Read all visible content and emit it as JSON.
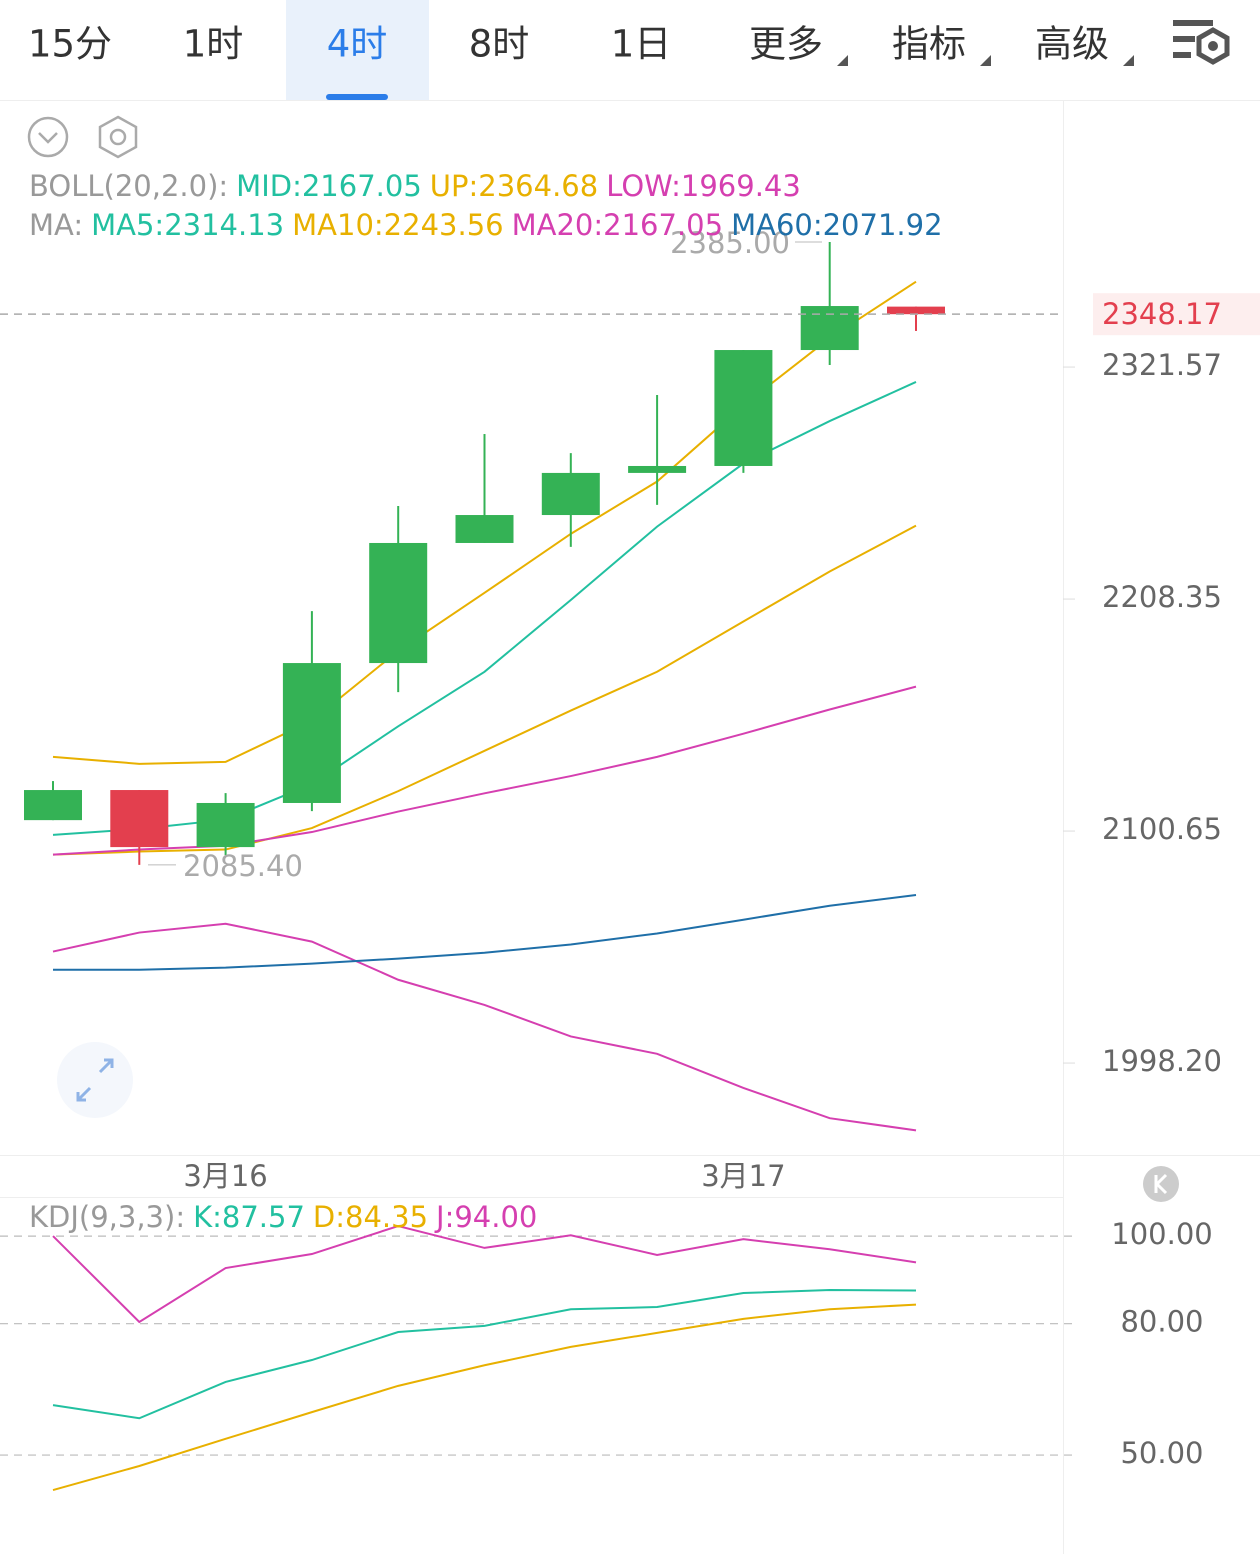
{
  "tabs": [
    "15分",
    "1时",
    "4时",
    "8时",
    "1日",
    "更多",
    "指标",
    "高级"
  ],
  "selected_tab": 2,
  "chart_data": [
    {
      "type": "candlestick",
      "legend_rows": [
        {
          "prefix": "BOLL(20,2.0):",
          "items": [
            {
              "text": "MID:2167.05",
              "color": "#22c0a0"
            },
            {
              "text": "UP:2364.68",
              "color": "#e8b000"
            },
            {
              "text": "LOW:1969.43",
              "color": "#d53fb0"
            }
          ]
        },
        {
          "prefix": "MA:",
          "items": [
            {
              "text": "MA5:2314.13",
              "color": "#22c0a0"
            },
            {
              "text": "MA10:2243.56",
              "color": "#e8b000"
            },
            {
              "text": "MA20:2167.05",
              "color": "#d53fb0"
            },
            {
              "text": "MA60:2071.92",
              "color": "#1f6fa8"
            }
          ]
        }
      ],
      "categories": [
        null,
        null,
        "3月16",
        null,
        null,
        null,
        null,
        null,
        "3月17",
        null,
        null
      ],
      "candles": [
        {
          "open": 2105.6,
          "high": 2123.4,
          "low": 2105.6,
          "close": 2119.3
        },
        {
          "open": 2119.3,
          "high": 2119.3,
          "low": 2085.4,
          "close": 2093.4
        },
        {
          "open": 2093.4,
          "high": 2117.9,
          "low": 2089.8,
          "close": 2113.4
        },
        {
          "open": 2113.4,
          "high": 2202.6,
          "low": 2109.7,
          "close": 2178.1
        },
        {
          "open": 2178.1,
          "high": 2253.1,
          "low": 2164.5,
          "close": 2235.2
        },
        {
          "open": 2235.2,
          "high": 2288.3,
          "low": 2235.2,
          "close": 2248.7
        },
        {
          "open": 2248.7,
          "high": 2278.9,
          "low": 2233.3,
          "close": 2269.2
        },
        {
          "open": 2269.2,
          "high": 2307.6,
          "low": 2253.6,
          "close": 2272.6
        },
        {
          "open": 2272.6,
          "high": 2330.1,
          "low": 2269.2,
          "close": 2330.1
        },
        {
          "open": 2330.1,
          "high": 2385.0,
          "low": 2322.6,
          "close": 2352.3
        },
        {
          "open": 2352.0,
          "high": 2352.0,
          "low": 2339.7,
          "close": 2348.17
        }
      ],
      "up_color": "#34b255",
      "down_color": "#e33f4e",
      "series": [
        {
          "color": "#e8b000",
          "values": [
            2134.5,
            2131.3,
            2132.2,
            2151.2,
            2183.8,
            2211.3,
            2239.6,
            2265.0,
            2302.5,
            2336.1,
            2364.68
          ]
        },
        {
          "color": "#e8b000",
          "values": [
            2090.0,
            2091.4,
            2092.3,
            2102.0,
            2118.8,
            2137.3,
            2155.9,
            2174.0,
            2197.7,
            2221.5,
            2243.56
          ]
        },
        {
          "color": "#d53fb0",
          "values": [
            2090.0,
            2092.3,
            2094.0,
            2100.2,
            2109.5,
            2117.8,
            2125.7,
            2134.5,
            2145.2,
            2156.4,
            2167.05
          ]
        },
        {
          "color": "#d53fb0",
          "values": [
            2046.8,
            2055.2,
            2059.1,
            2051.2,
            2034.4,
            2023.4,
            2009.7,
            2002.2,
            1987.5,
            1974.6,
            1969.43
          ]
        },
        {
          "color": "#1f6fa8",
          "values": [
            2038.8,
            2038.8,
            2039.7,
            2041.5,
            2043.7,
            2046.3,
            2049.9,
            2054.8,
            2060.9,
            2067.1,
            2071.92
          ]
        },
        {
          "color": "#22c0a0",
          "values": [
            2098.9,
            2101.6,
            2105.8,
            2122.0,
            2148.6,
            2174.0,
            2207.9,
            2243.1,
            2273.8,
            2294.7,
            2314.13
          ]
        }
      ],
      "log_scale": true,
      "ylim": [
        1959.0,
        2459.1
      ],
      "yticks": [
        2321.57,
        2208.35,
        2100.65,
        {
          "value": 1998.2,
          "label": "1998.20"
        }
      ],
      "current_price": 2348.17,
      "high_label": {
        "value": 2385.0,
        "label": "2385.00"
      },
      "low_label": {
        "value": 2085.4,
        "label": "2085.40"
      }
    },
    {
      "type": "line",
      "legend_rows": [
        {
          "prefix": "KDJ(9,3,3):",
          "items": [
            {
              "text": "K:87.57",
              "color": "#22c0a0"
            },
            {
              "text": "D:84.35",
              "color": "#e8b000"
            },
            {
              "text": "J:94.00",
              "color": "#d53fb0"
            }
          ]
        }
      ],
      "series": [
        {
          "color": "#d53fb0",
          "values": [
            100.0,
            80.4,
            92.7,
            95.9,
            102.3,
            97.3,
            100.2,
            95.7,
            99.3,
            97.0,
            94.0
          ]
        },
        {
          "color": "#22c0a0",
          "values": [
            61.4,
            58.4,
            66.7,
            71.7,
            78.1,
            79.5,
            83.3,
            83.8,
            87.0,
            87.7,
            87.57
          ]
        },
        {
          "color": "#e8b000",
          "values": [
            42.0,
            47.5,
            53.7,
            59.8,
            65.8,
            70.5,
            74.7,
            77.9,
            81.1,
            83.3,
            84.35
          ]
        }
      ],
      "ylim": [
        27.4,
        108.7
      ],
      "yticks": [
        {
          "value": 100,
          "label": "100.00"
        },
        {
          "value": 80,
          "label": "80.00"
        },
        {
          "value": 50,
          "label": "50.00"
        }
      ]
    }
  ]
}
